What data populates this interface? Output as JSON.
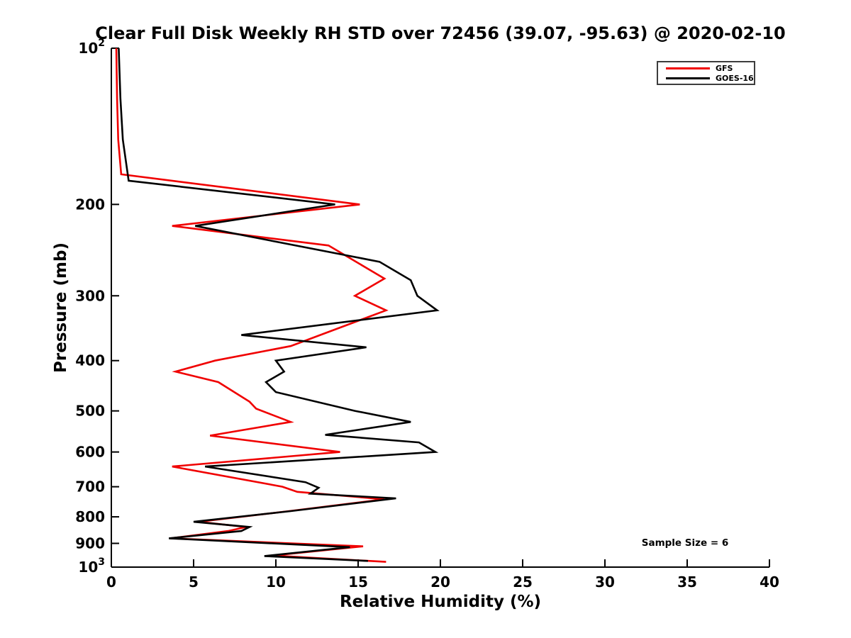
{
  "title": "Clear Full Disk Weekly RH STD over 72456 (39.07, -95.63) @ 2020-02-10",
  "annotation": "Sample Size = 6",
  "axes": {
    "x_label": "Relative Humidity (%)",
    "y_label": "Pressure (mb)"
  },
  "chart_data": {
    "type": "line",
    "title": "Clear Full Disk Weekly RH STD over 72456 (39.07, -95.63) @ 2020-02-10",
    "xlabel": "Relative Humidity (%)",
    "ylabel": "Pressure (mb)",
    "xlim": [
      0,
      40
    ],
    "ylim": [
      100,
      1000
    ],
    "y_scale": "log",
    "y_inverted": true,
    "grid": false,
    "legend_position": "upper right",
    "x_ticks": [
      0,
      5,
      10,
      15,
      20,
      25,
      30,
      35,
      40
    ],
    "y_ticks": [
      {
        "value": 100,
        "base": "10",
        "sup": "2"
      },
      {
        "value": 200,
        "text": "200"
      },
      {
        "value": 300,
        "text": "300"
      },
      {
        "value": 400,
        "text": "400"
      },
      {
        "value": 500,
        "text": "500"
      },
      {
        "value": 600,
        "text": "600"
      },
      {
        "value": 700,
        "text": "700"
      },
      {
        "value": 800,
        "text": "800"
      },
      {
        "value": 900,
        "text": "900"
      },
      {
        "value": 1000,
        "base": "10",
        "sup": "3"
      }
    ],
    "series": [
      {
        "name": "GFS",
        "color": "#f00000",
        "points_pressure_rh": [
          [
            100,
            0.3
          ],
          [
            125,
            0.35
          ],
          [
            150,
            0.42
          ],
          [
            175,
            0.6
          ],
          [
            200,
            15.1
          ],
          [
            220,
            3.7
          ],
          [
            240,
            13.2
          ],
          [
            278,
            16.6
          ],
          [
            300,
            14.8
          ],
          [
            320,
            16.7
          ],
          [
            375,
            10.9
          ],
          [
            400,
            6.3
          ],
          [
            420,
            3.9
          ],
          [
            440,
            6.5
          ],
          [
            480,
            8.4
          ],
          [
            495,
            8.8
          ],
          [
            525,
            10.9
          ],
          [
            558,
            6.0
          ],
          [
            600,
            13.9
          ],
          [
            640,
            3.7
          ],
          [
            700,
            10.4
          ],
          [
            716,
            11.3
          ],
          [
            740,
            16.6
          ],
          [
            780,
            10.8
          ],
          [
            818,
            5.3
          ],
          [
            837,
            8.2
          ],
          [
            852,
            7.1
          ],
          [
            880,
            3.6
          ],
          [
            912,
            15.3
          ],
          [
            950,
            9.8
          ],
          [
            977,
            16.7
          ]
        ]
      },
      {
        "name": "GOES-16",
        "color": "#000000",
        "points_pressure_rh": [
          [
            100,
            0.45
          ],
          [
            125,
            0.55
          ],
          [
            150,
            0.7
          ],
          [
            180,
            1.05
          ],
          [
            200,
            13.6
          ],
          [
            220,
            5.1
          ],
          [
            258,
            16.3
          ],
          [
            280,
            18.2
          ],
          [
            300,
            18.6
          ],
          [
            320,
            19.8
          ],
          [
            357,
            7.9
          ],
          [
            377,
            15.5
          ],
          [
            400,
            10.0
          ],
          [
            420,
            10.5
          ],
          [
            440,
            9.4
          ],
          [
            460,
            10.0
          ],
          [
            500,
            14.8
          ],
          [
            525,
            18.2
          ],
          [
            556,
            13.0
          ],
          [
            575,
            18.7
          ],
          [
            600,
            19.7
          ],
          [
            640,
            5.7
          ],
          [
            686,
            11.8
          ],
          [
            703,
            12.6
          ],
          [
            722,
            12.1
          ],
          [
            737,
            17.3
          ],
          [
            780,
            10.9
          ],
          [
            818,
            5.0
          ],
          [
            837,
            8.4
          ],
          [
            852,
            7.9
          ],
          [
            880,
            3.5
          ],
          [
            915,
            14.5
          ],
          [
            952,
            9.3
          ],
          [
            973,
            15.6
          ]
        ]
      }
    ],
    "annotations": [
      "Sample Size = 6"
    ]
  }
}
